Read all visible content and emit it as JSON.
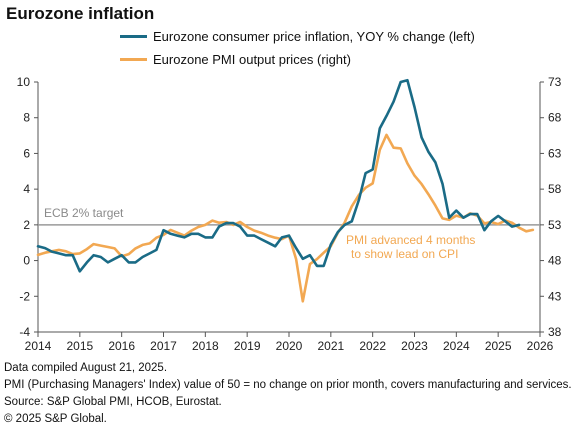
{
  "title": "Eurozone inflation",
  "chart_data": {
    "type": "line",
    "title": "Eurozone inflation",
    "xlabel": "",
    "x_ticks": [
      "2014",
      "2015",
      "2016",
      "2017",
      "2018",
      "2019",
      "2020",
      "2021",
      "2022",
      "2023",
      "2024",
      "2025",
      "2026"
    ],
    "left_axis": {
      "ylim": [
        -4,
        10
      ],
      "ticks": [
        "-4",
        "-2",
        "0",
        "2",
        "4",
        "6",
        "8",
        "10"
      ]
    },
    "right_axis": {
      "ylim": [
        38,
        73
      ],
      "ticks": [
        "38",
        "43",
        "48",
        "53",
        "58",
        "63",
        "68",
        "73"
      ]
    },
    "grid": false,
    "legend_position": "top",
    "series": [
      {
        "name": "Eurozone consumer price inflation, YOY % change (left)",
        "axis": "left",
        "color": "#1a6b86",
        "x": [
          2014.0,
          2014.17,
          2014.33,
          2014.5,
          2014.67,
          2014.83,
          2015.0,
          2015.17,
          2015.33,
          2015.5,
          2015.67,
          2015.83,
          2016.0,
          2016.17,
          2016.33,
          2016.5,
          2016.67,
          2016.83,
          2017.0,
          2017.17,
          2017.33,
          2017.5,
          2017.67,
          2017.83,
          2018.0,
          2018.17,
          2018.33,
          2018.5,
          2018.67,
          2018.83,
          2019.0,
          2019.17,
          2019.33,
          2019.5,
          2019.67,
          2019.83,
          2020.0,
          2020.17,
          2020.33,
          2020.5,
          2020.67,
          2020.83,
          2021.0,
          2021.17,
          2021.33,
          2021.5,
          2021.67,
          2021.83,
          2022.0,
          2022.17,
          2022.33,
          2022.5,
          2022.67,
          2022.83,
          2023.0,
          2023.17,
          2023.33,
          2023.5,
          2023.67,
          2023.83,
          2024.0,
          2024.17,
          2024.33,
          2024.5,
          2024.67,
          2024.83,
          2025.0,
          2025.17,
          2025.33,
          2025.5
        ],
        "values": [
          0.8,
          0.7,
          0.5,
          0.4,
          0.3,
          0.3,
          -0.6,
          -0.1,
          0.3,
          0.2,
          -0.1,
          0.1,
          0.3,
          -0.1,
          -0.1,
          0.2,
          0.4,
          0.6,
          1.7,
          1.5,
          1.4,
          1.3,
          1.5,
          1.5,
          1.3,
          1.3,
          1.9,
          2.1,
          2.1,
          1.9,
          1.4,
          1.4,
          1.2,
          1.0,
          0.8,
          1.3,
          1.4,
          0.7,
          0.1,
          0.3,
          -0.3,
          -0.3,
          0.9,
          1.6,
          2.0,
          2.2,
          3.4,
          4.9,
          5.1,
          7.4,
          8.1,
          8.9,
          10.0,
          10.1,
          8.6,
          6.9,
          6.1,
          5.5,
          4.3,
          2.4,
          2.8,
          2.4,
          2.6,
          2.6,
          1.7,
          2.2,
          2.5,
          2.2,
          1.9,
          2.0
        ]
      },
      {
        "name": "Eurozone PMI output prices (right)",
        "axis": "right",
        "color": "#f2a852",
        "x": [
          2014.0,
          2014.17,
          2014.33,
          2014.5,
          2014.67,
          2014.83,
          2015.0,
          2015.17,
          2015.33,
          2015.5,
          2015.67,
          2015.83,
          2016.0,
          2016.17,
          2016.33,
          2016.5,
          2016.67,
          2016.83,
          2017.0,
          2017.17,
          2017.33,
          2017.5,
          2017.67,
          2017.83,
          2018.0,
          2018.17,
          2018.33,
          2018.5,
          2018.67,
          2018.83,
          2019.0,
          2019.17,
          2019.33,
          2019.5,
          2019.67,
          2019.83,
          2020.0,
          2020.17,
          2020.33,
          2020.5,
          2020.67,
          2020.83,
          2021.0,
          2021.17,
          2021.33,
          2021.5,
          2021.67,
          2021.83,
          2022.0,
          2022.17,
          2022.33,
          2022.5,
          2022.67,
          2022.83,
          2023.0,
          2023.17,
          2023.33,
          2023.5,
          2023.67,
          2023.83,
          2024.0,
          2024.17,
          2024.33,
          2024.5,
          2024.67,
          2024.83,
          2025.0,
          2025.17,
          2025.33,
          2025.5,
          2025.67,
          2025.83
        ],
        "values": [
          48.8,
          49.1,
          49.3,
          49.5,
          49.3,
          48.9,
          49.0,
          49.6,
          50.3,
          50.1,
          49.9,
          49.7,
          48.6,
          48.9,
          49.7,
          50.2,
          50.4,
          51.2,
          51.6,
          52.3,
          51.9,
          51.5,
          52.2,
          52.7,
          53.0,
          53.6,
          53.3,
          53.4,
          53.0,
          53.4,
          52.7,
          52.2,
          51.9,
          51.5,
          51.2,
          51.0,
          51.5,
          48.2,
          42.3,
          47.5,
          48.2,
          49.1,
          50.0,
          51.9,
          53.3,
          55.6,
          57.2,
          58.2,
          58.8,
          63.5,
          65.6,
          63.8,
          63.7,
          61.6,
          59.9,
          58.7,
          57.3,
          55.7,
          53.9,
          53.7,
          54.3,
          54.0,
          54.6,
          54.3,
          53.2,
          53.4,
          53.1,
          53.6,
          53.3,
          52.6,
          52.1,
          52.3
        ]
      }
    ],
    "reference_line": {
      "axis": "left",
      "value": 2,
      "label": "ECB 2% target"
    },
    "annotation": "PMI advanced 4 months\nto show lead on CPI"
  },
  "footer": {
    "line1": "Data compiled August 21, 2025.",
    "line2": "PMI (Purchasing Managers' Index) value of 50 = no change on prior month, covers manufacturing and services.",
    "line3": "Source: S&P Global PMI, HCOB, Eurostat.",
    "line4": "© 2025 S&P Global."
  }
}
